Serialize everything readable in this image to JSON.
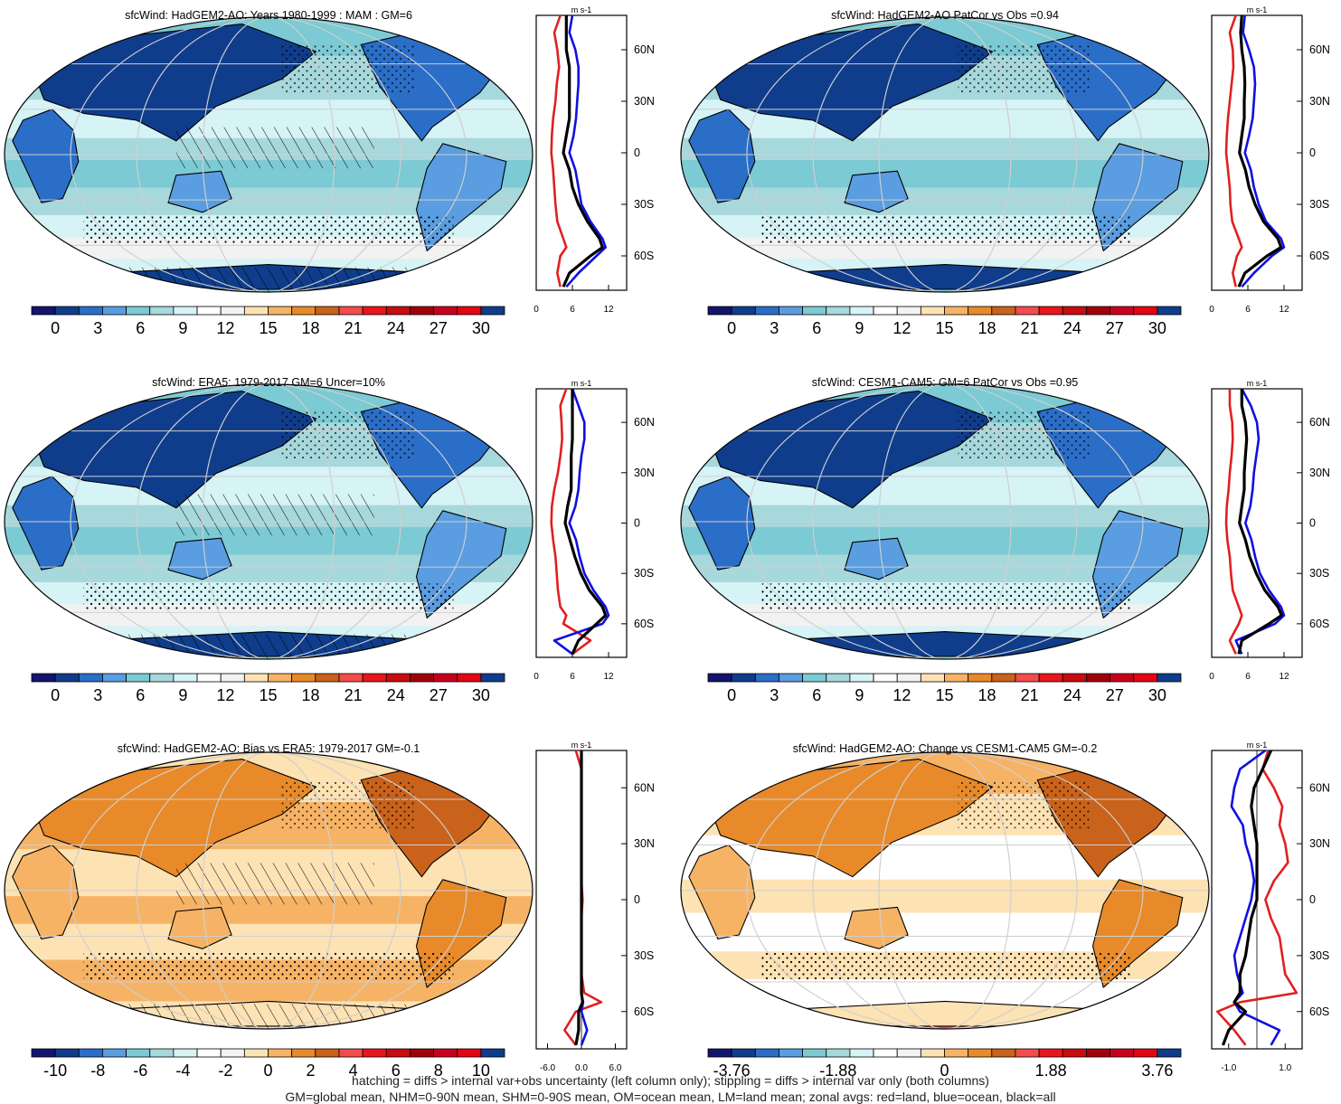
{
  "palette": {
    "seq": [
      "#14146e",
      "#0f3d8c",
      "#2a6ec8",
      "#5a9de0",
      "#7ccad4",
      "#a6d8dc",
      "#d6f3f6",
      "#ffffff",
      "#f2f2f2",
      "#fde2b4",
      "#f6b366",
      "#e88a2a",
      "#c9621a",
      "#f44b4b",
      "#e8161a",
      "#c80c10",
      "#a00008",
      "#c8001e",
      "#e20612",
      "#0e3d8c"
    ],
    "div": [
      "#14146e",
      "#0f3d8c",
      "#2a6ec8",
      "#5a9de0",
      "#7ccad4",
      "#a6d8dc",
      "#d6f3f6",
      "#ffffff",
      "#ffffff",
      "#fde2b4",
      "#f6b366",
      "#e88a2a",
      "#c9621a",
      "#f44b4b",
      "#e8161a",
      "#c80c10",
      "#a00008",
      "#c8001e",
      "#e20612",
      "#0e3d8c"
    ],
    "land": "#e02020",
    "ocean": "#1010e0",
    "all": "#000000"
  },
  "footer": {
    "line1": "hatching = diffs > internal var+obs uncertainty (left column only); stippling = diffs > internal var only (both columns)",
    "line2": "GM=global mean, NHM=0-90N mean, SHM=0-90S mean, OM=ocean mean, LM=land mean; zonal avgs: red=land, blue=ocean, black=all"
  },
  "chart_data": [
    {
      "type": "heatmap",
      "title": "sfcWind: HadGEM2-AO: Years 1980-1999 : MAM : GM=6",
      "colorbar_ticks": [
        "0",
        "3",
        "6",
        "9",
        "12",
        "15",
        "18",
        "21",
        "24",
        "27",
        "30"
      ],
      "profile": {
        "type": "line",
        "units": "m s-1",
        "xlim": [
          0,
          15
        ],
        "xticks": [
          "0",
          "6",
          "12"
        ],
        "yticks": [
          "60N",
          "30N",
          "0",
          "30S",
          "60S"
        ],
        "lat": [
          80,
          70,
          60,
          50,
          40,
          30,
          20,
          10,
          0,
          -10,
          -20,
          -30,
          -40,
          -50,
          -55,
          -60,
          -70,
          -78
        ],
        "series": [
          {
            "name": "land",
            "values": [
              4,
              3,
              3.5,
              3.8,
              3.4,
              3.2,
              2.8,
              2.6,
              2.5,
              2.8,
              3,
              3.2,
              3.5,
              4.5,
              5,
              4,
              3.5,
              4
            ]
          },
          {
            "name": "ocean",
            "values": [
              6,
              5.5,
              6.5,
              7,
              7,
              6.8,
              6.6,
              6.2,
              5.5,
              6.5,
              7,
              7.5,
              9,
              11,
              11.5,
              10,
              7,
              5
            ]
          },
          {
            "name": "all",
            "values": [
              5,
              5,
              5,
              5.5,
              5.5,
              5.5,
              5.5,
              5,
              4.5,
              5.5,
              6,
              7,
              8.5,
              10.5,
              11,
              9,
              5.5,
              4.5
            ]
          }
        ]
      }
    },
    {
      "type": "heatmap",
      "title": "sfcWind: HadGEM2-AO PatCor vs Obs =0.94",
      "colorbar_ticks": [
        "0",
        "3",
        "6",
        "9",
        "12",
        "15",
        "18",
        "21",
        "24",
        "27",
        "30"
      ],
      "profile": {
        "type": "line",
        "units": "m s-1",
        "xlim": [
          0,
          15
        ],
        "xticks": [
          "0",
          "6",
          "12"
        ],
        "yticks": [
          "60N",
          "30N",
          "0",
          "30S",
          "60S"
        ],
        "lat": [
          80,
          70,
          60,
          50,
          40,
          30,
          20,
          10,
          0,
          -10,
          -20,
          -30,
          -40,
          -50,
          -55,
          -60,
          -70,
          -78
        ],
        "series": [
          {
            "name": "land",
            "values": [
              4,
              3,
              3.5,
              3.6,
              3.3,
              3,
              2.7,
              2.5,
              2.4,
              2.7,
              3,
              3.1,
              3.4,
              4.5,
              5,
              4.2,
              3.5,
              4
            ]
          },
          {
            "name": "ocean",
            "values": [
              5.5,
              5.2,
              6.2,
              7,
              7.2,
              7,
              6.8,
              6.2,
              5.5,
              6.5,
              7,
              7.8,
              9,
              11.5,
              12,
              10,
              7,
              5
            ]
          },
          {
            "name": "all",
            "values": [
              5,
              4.8,
              5,
              5.4,
              5.5,
              5.4,
              5.4,
              5,
              4.6,
              5.6,
              6.2,
              7.2,
              8.6,
              11,
              11.5,
              9.2,
              5.5,
              4.5
            ]
          }
        ]
      }
    },
    {
      "type": "heatmap",
      "title": "sfcWind: ERA5: 1979-2017 GM=6 Uncer=10%",
      "colorbar_ticks": [
        "0",
        "3",
        "6",
        "9",
        "12",
        "15",
        "18",
        "21",
        "24",
        "27",
        "30"
      ],
      "profile": {
        "type": "line",
        "units": "m s-1",
        "xlim": [
          0,
          15
        ],
        "xticks": [
          "0",
          "6",
          "12"
        ],
        "yticks": [
          "60N",
          "30N",
          "0",
          "30S",
          "60S"
        ],
        "lat": [
          80,
          70,
          60,
          50,
          40,
          30,
          20,
          10,
          0,
          -10,
          -20,
          -30,
          -40,
          -50,
          -55,
          -60,
          -70,
          -78
        ],
        "series": [
          {
            "name": "land",
            "values": [
              5,
              4,
              4.2,
              4.3,
              4,
              3.6,
              3,
              2.6,
              2.5,
              2.8,
              3.2,
              3.4,
              3.6,
              4,
              5,
              4.5,
              9,
              6
            ]
          },
          {
            "name": "ocean",
            "values": [
              6,
              7,
              8,
              8,
              7.5,
              7.2,
              7,
              6.5,
              5.5,
              6.6,
              7.2,
              8,
              9.5,
              11.5,
              12,
              11,
              3,
              6
            ]
          },
          {
            "name": "all",
            "values": [
              6,
              6,
              6,
              6,
              5.8,
              5.8,
              5.8,
              5.2,
              4.8,
              5.6,
              6.4,
              7.4,
              8.8,
              11,
              11.5,
              10,
              7,
              6
            ]
          }
        ]
      }
    },
    {
      "type": "heatmap",
      "title": "sfcWind: CESM1-CAM5: GM=6 PatCor vs Obs =0.95",
      "colorbar_ticks": [
        "0",
        "3",
        "6",
        "9",
        "12",
        "15",
        "18",
        "21",
        "24",
        "27",
        "30"
      ],
      "profile": {
        "type": "line",
        "units": "m s-1",
        "xlim": [
          0,
          15
        ],
        "xticks": [
          "0",
          "6",
          "12"
        ],
        "yticks": [
          "60N",
          "30N",
          "0",
          "30S",
          "60S"
        ],
        "lat": [
          80,
          70,
          60,
          50,
          40,
          30,
          20,
          10,
          0,
          -10,
          -20,
          -30,
          -40,
          -50,
          -55,
          -60,
          -70,
          -78
        ],
        "series": [
          {
            "name": "land",
            "values": [
              3,
              3,
              3.4,
              3.5,
              3.3,
              3,
              2.8,
              2.5,
              2.4,
              2.6,
              3,
              3.2,
              3.5,
              4.5,
              5,
              4.5,
              3,
              4
            ]
          },
          {
            "name": "ocean",
            "values": [
              5,
              6.5,
              7.5,
              7.8,
              7.4,
              7,
              6.8,
              6.4,
              5.6,
              6.6,
              7.2,
              8,
              9.5,
              11.5,
              12,
              10.5,
              4,
              5
            ]
          },
          {
            "name": "all",
            "values": [
              5,
              5,
              5.6,
              5.8,
              5.6,
              5.4,
              5.4,
              5,
              4.6,
              5.6,
              6.3,
              7.4,
              8.8,
              11,
              11.6,
              9.5,
              5,
              4.5
            ]
          }
        ]
      }
    },
    {
      "type": "heatmap",
      "title": "sfcWind: HadGEM2-AO: Bias vs ERA5: 1979-2017 GM=-0.1",
      "colorbar_ticks": [
        "-10",
        "-8",
        "-6",
        "-4",
        "-2",
        "0",
        "2",
        "4",
        "6",
        "8",
        "10"
      ],
      "profile": {
        "type": "line",
        "units": "m s-1",
        "xlim": [
          -8,
          8
        ],
        "xticks": [
          "-6.0",
          "0.0",
          "6.0"
        ],
        "yticks": [
          "60N",
          "30N",
          "0",
          "30S",
          "60S"
        ],
        "lat": [
          80,
          70,
          60,
          50,
          40,
          30,
          20,
          10,
          0,
          -10,
          -20,
          -30,
          -40,
          -50,
          -55,
          -60,
          -70,
          -78
        ],
        "series": [
          {
            "name": "land",
            "values": [
              -1,
              0,
              0,
              0,
              0,
              0,
              0,
              0,
              0.2,
              0,
              0,
              0,
              0,
              0.5,
              3.5,
              -1,
              -3,
              -1
            ]
          },
          {
            "name": "ocean",
            "values": [
              0,
              0,
              0,
              0,
              0,
              0,
              0,
              0,
              0,
              0,
              0,
              0,
              0,
              0,
              0.3,
              0,
              1,
              0
            ]
          },
          {
            "name": "all",
            "values": [
              0,
              0,
              0,
              0,
              0,
              0,
              0,
              0,
              0,
              0,
              0,
              0,
              0,
              0,
              0.2,
              -0.5,
              -0.5,
              -1
            ]
          }
        ]
      }
    },
    {
      "type": "heatmap",
      "title": "sfcWind: HadGEM2-AO: Change vs CESM1-CAM5 GM=-0.2",
      "colorbar_ticks": [
        "-3.76",
        "-1.88",
        "0",
        "1.88",
        "3.76"
      ],
      "profile": {
        "type": "line",
        "units": "m s-1",
        "xlim": [
          -1.6,
          1.6
        ],
        "xticks": [
          "-1.0",
          "1.0"
        ],
        "yticks": [
          "60N",
          "30N",
          "0",
          "30S",
          "60S"
        ],
        "lat": [
          80,
          70,
          60,
          50,
          40,
          30,
          20,
          10,
          0,
          -10,
          -20,
          -30,
          -40,
          -50,
          -55,
          -60,
          -70,
          -78
        ],
        "series": [
          {
            "name": "land",
            "values": [
              0.4,
              0.2,
              0.6,
              0.9,
              0.8,
              1.0,
              1.1,
              0.6,
              0.3,
              0.5,
              0.8,
              0.9,
              1.0,
              1.4,
              -0.6,
              -1.4,
              -0.8,
              -0.4
            ]
          },
          {
            "name": "ocean",
            "values": [
              0.3,
              -0.6,
              -0.8,
              -0.9,
              -0.5,
              -0.4,
              -0.2,
              -0.1,
              -0.2,
              -0.4,
              -0.6,
              -0.8,
              -0.7,
              -0.5,
              -0.8,
              -0.6,
              0.8,
              0.5
            ]
          },
          {
            "name": "all",
            "values": [
              0.5,
              0.2,
              -0.1,
              -0.2,
              -0.1,
              0,
              0,
              0,
              0,
              -0.2,
              -0.3,
              -0.4,
              -0.6,
              -0.6,
              -0.8,
              -0.4,
              -1.0,
              -1.2
            ]
          }
        ]
      }
    }
  ]
}
